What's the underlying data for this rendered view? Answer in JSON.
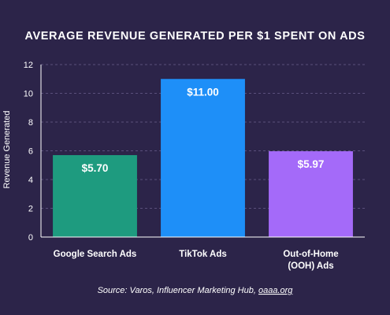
{
  "chart_data": {
    "type": "bar",
    "title": "AVERAGE REVENUE GENERATED PER $1 SPENT ON ADS",
    "ylabel": "Revenue Generated",
    "xlabel": "",
    "ylim": [
      0,
      12
    ],
    "yticks": [
      0,
      2,
      4,
      6,
      8,
      10,
      12
    ],
    "grid": true,
    "categories": [
      [
        "Google Search Ads"
      ],
      [
        "TikTok Ads"
      ],
      [
        "Out-of-Home",
        "(OOH) Ads"
      ]
    ],
    "values": [
      5.7,
      11.0,
      5.97
    ],
    "data_labels": [
      "$5.70",
      "$11.00",
      "$5.97"
    ],
    "bar_colors": [
      "#1e9b7f",
      "#1e8ff8",
      "#a46af9"
    ],
    "source_prefix": "Source: Varos, Influencer Marketing Hub, ",
    "source_link": "oaaa.org"
  },
  "colors": {
    "background": "#2c2449",
    "gridline": "#5a4f7c",
    "axis": "#ffffff",
    "text": "#ffffff"
  }
}
